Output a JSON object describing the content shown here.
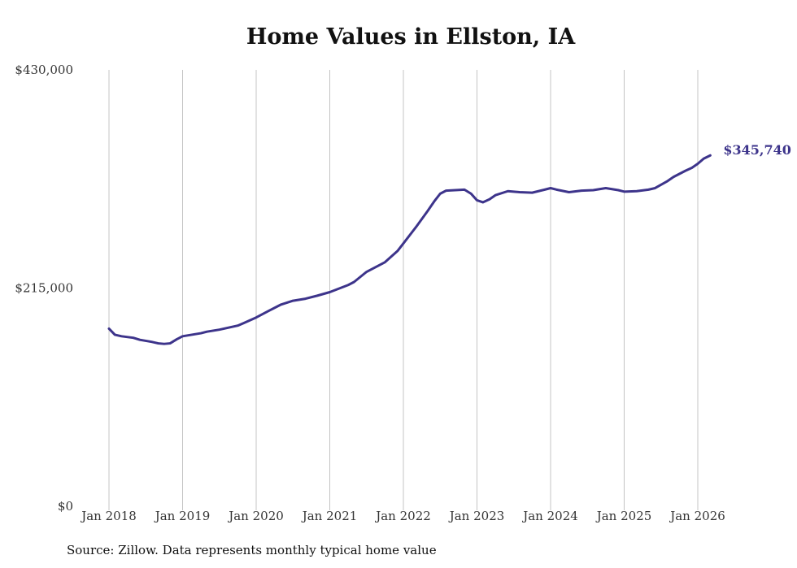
{
  "chart_data": {
    "type": "line",
    "title": "Home Values in Ellston, IA",
    "xlabel": "",
    "ylabel": "",
    "ylim": [
      0,
      430000
    ],
    "y_ticks": [
      {
        "value": 0,
        "label": "$0"
      },
      {
        "value": 215000,
        "label": "$215,000"
      },
      {
        "value": 430000,
        "label": "$430,000"
      }
    ],
    "x_ticks": [
      {
        "value": 2018,
        "label": "Jan 2018"
      },
      {
        "value": 2019,
        "label": "Jan 2019"
      },
      {
        "value": 2020,
        "label": "Jan 2020"
      },
      {
        "value": 2021,
        "label": "Jan 2021"
      },
      {
        "value": 2022,
        "label": "Jan 2022"
      },
      {
        "value": 2023,
        "label": "Jan 2023"
      },
      {
        "value": 2024,
        "label": "Jan 2024"
      },
      {
        "value": 2025,
        "label": "Jan 2025"
      },
      {
        "value": 2026,
        "label": "Jan 2026"
      }
    ],
    "xlim": [
      2018,
      2026.17
    ],
    "grid": "vertical",
    "series": [
      {
        "name": "Typical home value",
        "color": "#3d348b",
        "x": [
          2018.0,
          2018.08,
          2018.17,
          2018.33,
          2018.42,
          2018.58,
          2018.67,
          2018.75,
          2018.83,
          2018.92,
          2019.0,
          2019.25,
          2019.33,
          2019.5,
          2019.75,
          2019.83,
          2020.0,
          2020.17,
          2020.33,
          2020.5,
          2020.67,
          2020.83,
          2021.0,
          2021.25,
          2021.33,
          2021.5,
          2021.75,
          2021.92,
          2022.0,
          2022.17,
          2022.33,
          2022.42,
          2022.5,
          2022.58,
          2022.83,
          2022.92,
          2023.0,
          2023.08,
          2023.17,
          2023.25,
          2023.42,
          2023.58,
          2023.75,
          2023.92,
          2024.0,
          2024.08,
          2024.25,
          2024.42,
          2024.58,
          2024.75,
          2024.92,
          2025.0,
          2025.17,
          2025.33,
          2025.42,
          2025.58,
          2025.67,
          2025.83,
          2025.92,
          2026.0,
          2026.08,
          2026.17
        ],
        "values": [
          175000,
          169000,
          167500,
          166000,
          164000,
          162000,
          160500,
          160000,
          160500,
          164500,
          167500,
          170500,
          172000,
          174000,
          178000,
          180500,
          186000,
          192500,
          198500,
          202500,
          204500,
          207500,
          211000,
          218000,
          221000,
          231000,
          240500,
          251500,
          259000,
          275000,
          291000,
          300500,
          308000,
          311000,
          312000,
          308000,
          301500,
          299500,
          302500,
          306500,
          310500,
          309500,
          309000,
          312000,
          313500,
          312000,
          309500,
          311000,
          311500,
          313500,
          311500,
          310000,
          310500,
          312000,
          313500,
          320000,
          324500,
          330500,
          333500,
          337500,
          342500,
          345740
        ]
      }
    ],
    "end_label": "$345,740",
    "source": "Source: Zillow. Data represents monthly typical home value"
  }
}
